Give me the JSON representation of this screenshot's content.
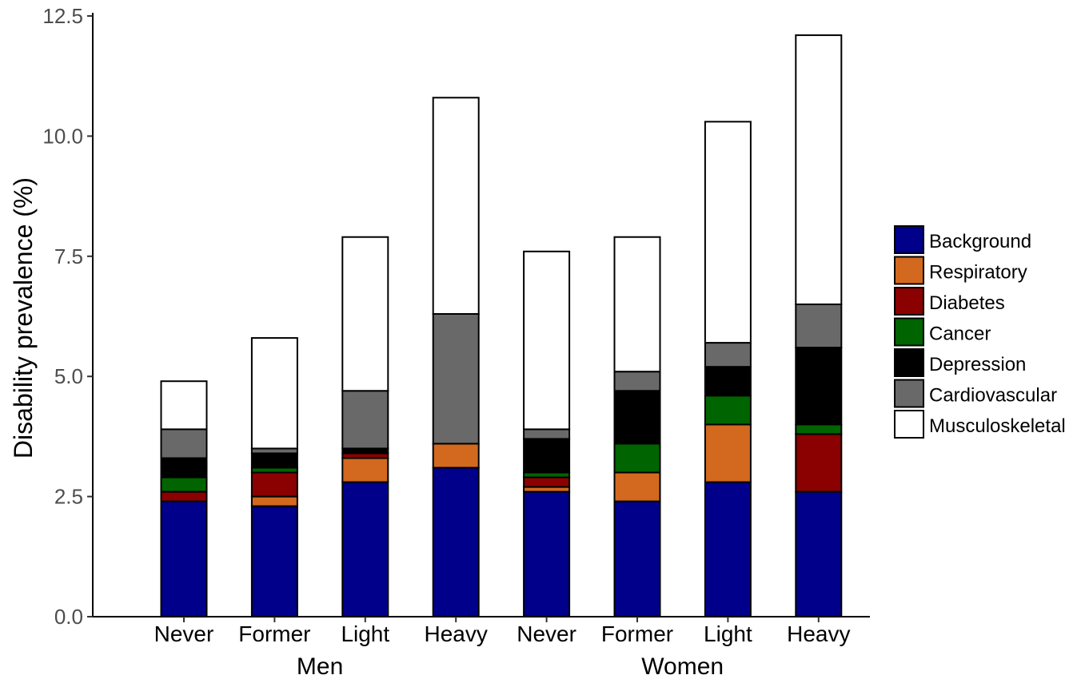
{
  "chart_data": {
    "type": "bar",
    "stacked": true,
    "ylabel": "Disability prevalence (%)",
    "xlabel": "",
    "ylim": [
      0,
      12.5
    ],
    "yticks": [
      "0.0",
      "2.5",
      "5.0",
      "7.5",
      "10.0",
      "12.5"
    ],
    "ytick_values": [
      0,
      2.5,
      5,
      7.5,
      10,
      12.5
    ],
    "grid": false,
    "legend_position": "right",
    "groups": [
      {
        "label": "Men",
        "categories": [
          "Never",
          "Former",
          "Light",
          "Heavy"
        ]
      },
      {
        "label": "Women",
        "categories": [
          "Never",
          "Former",
          "Light",
          "Heavy"
        ]
      }
    ],
    "categories": [
      "Never",
      "Former",
      "Light",
      "Heavy",
      "Never",
      "Former",
      "Light",
      "Heavy"
    ],
    "series": [
      {
        "name": "Background",
        "color": "#00008B",
        "values": [
          2.4,
          2.3,
          2.8,
          3.1,
          2.6,
          2.4,
          2.8,
          2.6
        ]
      },
      {
        "name": "Respiratory",
        "color": "#D2691E",
        "values": [
          0.0,
          0.2,
          0.5,
          0.5,
          0.1,
          0.6,
          1.2,
          0.0
        ]
      },
      {
        "name": "Diabetes",
        "color": "#8B0000",
        "values": [
          0.2,
          0.5,
          0.1,
          0.0,
          0.2,
          0.0,
          0.0,
          1.2
        ]
      },
      {
        "name": "Cancer",
        "color": "#006400",
        "values": [
          0.3,
          0.1,
          0.0,
          0.0,
          0.1,
          0.6,
          0.6,
          0.2
        ]
      },
      {
        "name": "Depression",
        "color": "#000000",
        "values": [
          0.4,
          0.3,
          0.1,
          0.0,
          0.7,
          1.1,
          0.6,
          1.6
        ]
      },
      {
        "name": "Cardiovascular",
        "color": "#696969",
        "values": [
          0.6,
          0.1,
          1.2,
          2.7,
          0.2,
          0.4,
          0.5,
          0.9
        ]
      },
      {
        "name": "Musculoskeletal",
        "color": "#FFFFFF",
        "values": [
          1.0,
          2.3,
          3.2,
          4.5,
          3.7,
          2.8,
          4.6,
          5.6
        ]
      }
    ]
  }
}
